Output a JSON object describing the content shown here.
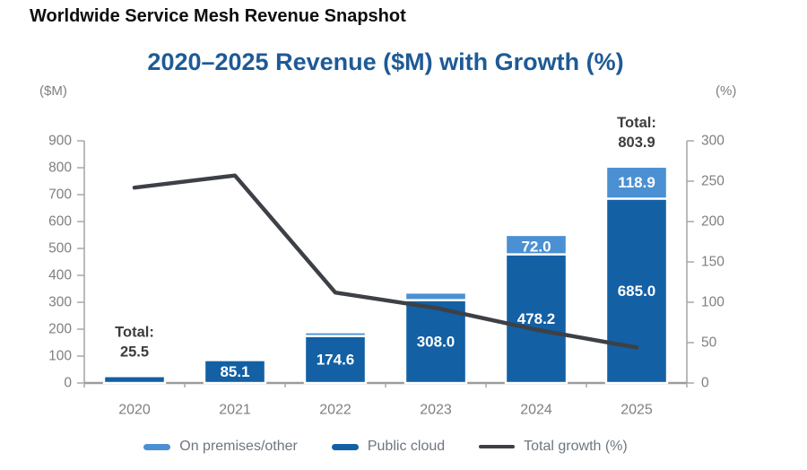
{
  "page": {
    "title": "Worldwide Service Mesh Revenue Snapshot"
  },
  "chart": {
    "title": "2020–2025 Revenue ($M) with Growth (%)",
    "left_axis_unit": "($M)",
    "right_axis_unit": "(%)"
  },
  "chart_data": {
    "type": "combo",
    "title": "2020–2025 Revenue ($M) with Growth (%)",
    "categories": [
      "2020",
      "2021",
      "2022",
      "2023",
      "2024",
      "2025"
    ],
    "series": [
      {
        "name": "On premises/other",
        "type": "bar",
        "stack_order": 2,
        "color": "#4a90d3",
        "values": [
          0,
          0,
          14,
          28,
          72.0,
          118.9
        ],
        "data_labels": [
          null,
          null,
          null,
          null,
          "72.0",
          "118.9"
        ]
      },
      {
        "name": "Public cloud",
        "type": "bar",
        "stack_order": 1,
        "color": "#1360a4",
        "values": [
          25.5,
          85.1,
          174.6,
          308.0,
          478.2,
          685.0
        ],
        "data_labels": [
          null,
          "85.1",
          "174.6",
          "308.0",
          "478.2",
          "685.0"
        ]
      },
      {
        "name": "Total growth (%)",
        "type": "line",
        "axis": "right",
        "color": "#3d4046",
        "values": [
          242,
          257,
          112,
          93,
          66,
          44
        ]
      }
    ],
    "total_annotations": [
      {
        "category": "2020",
        "lines": [
          "Total:",
          "25.5"
        ]
      },
      {
        "category": "2025",
        "lines": [
          "Total:",
          "803.9"
        ]
      }
    ],
    "left_axis": {
      "label": "($M)",
      "min": 0,
      "max": 900,
      "step": 100
    },
    "right_axis": {
      "label": "(%)",
      "min": 0,
      "max": 300,
      "step": 50
    },
    "legend_position": "bottom",
    "grid": false
  }
}
